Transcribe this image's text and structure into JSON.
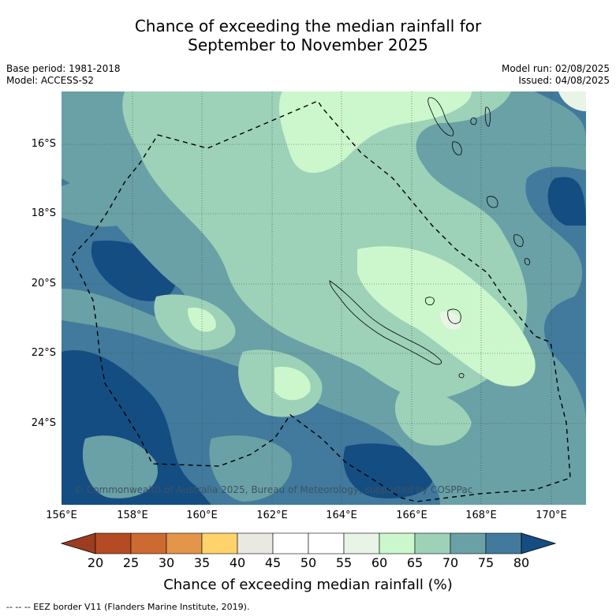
{
  "header": {
    "title_line1": "Chance of exceeding the median rainfall for",
    "title_line2": "September to November 2025"
  },
  "meta": {
    "base_period": "Base period: 1981-2018",
    "model": "Model: ACCESS-S2",
    "model_run": "Model run: 02/08/2025",
    "issued": "Issued: 04/08/2025"
  },
  "map": {
    "copyright": "© Commonwealth of Australia 2025, Bureau of Meteorology, supported by COSPPac",
    "lat_labels": [
      "16°S",
      "18°S",
      "20°S",
      "22°S",
      "24°S"
    ],
    "lon_labels": [
      "156°E",
      "158°E",
      "160°E",
      "162°E",
      "164°E",
      "166°E",
      "168°E",
      "170°E"
    ]
  },
  "colorbar": {
    "ticks": [
      "20",
      "25",
      "30",
      "35",
      "40",
      "45",
      "50",
      "55",
      "60",
      "65",
      "70",
      "75",
      "80"
    ],
    "colors": [
      "#9c3c20",
      "#b44b24",
      "#cd6a32",
      "#e3954a",
      "#fed36b",
      "#eae9e1",
      "#ffffff",
      "#ffffff",
      "#e8f5e6",
      "#ccf7cc",
      "#9dd2b8",
      "#6aa1a6",
      "#417a9c",
      "#144d82"
    ],
    "title": "Chance of exceeding median rainfall (%)"
  },
  "footer": {
    "eez_note": "--  --  -- EEZ border V11 (Flanders Marine Institute, 2019)."
  }
}
